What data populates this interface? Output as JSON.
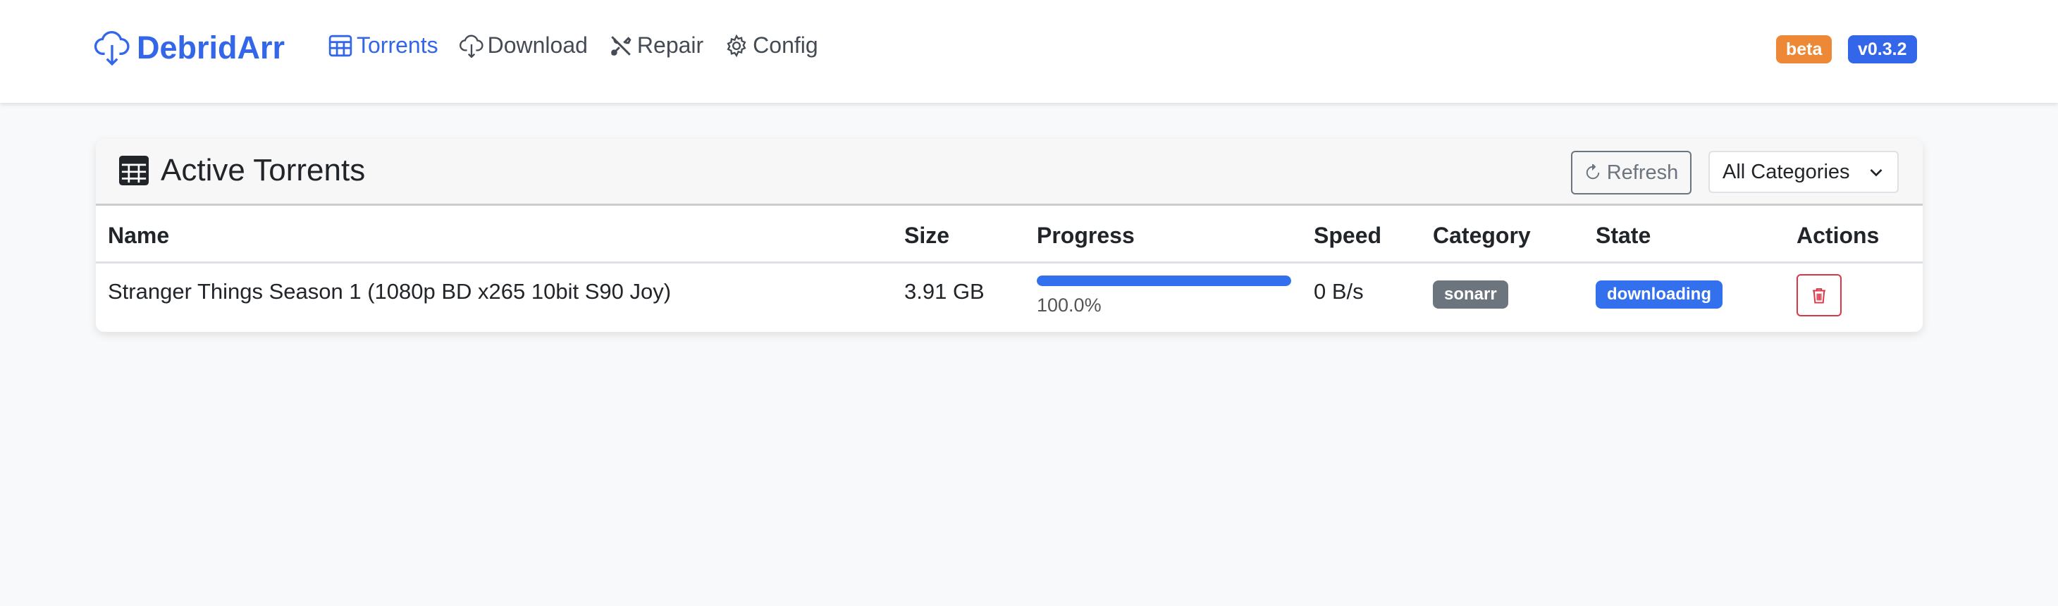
{
  "nav": {
    "brand": "DebridArr",
    "links": [
      {
        "label": "Torrents",
        "icon": "table-icon",
        "active": true
      },
      {
        "label": "Download",
        "icon": "cloud-download-icon"
      },
      {
        "label": "Repair",
        "icon": "tools-icon"
      },
      {
        "label": "Config",
        "icon": "gear-icon"
      }
    ],
    "badges": [
      {
        "label": "beta",
        "color": "#ed8936"
      },
      {
        "label": "v0.3.2",
        "color": "#3366e8"
      }
    ]
  },
  "card": {
    "title": "Active Torrents",
    "refresh_label": "Refresh",
    "category_select": "All Categories",
    "columns": [
      "Name",
      "Size",
      "Progress",
      "Speed",
      "Category",
      "State",
      "Actions"
    ],
    "rows": [
      {
        "name": "Stranger Things Season 1 (1080p BD x265 10bit S90 Joy)",
        "size": "3.91 GB",
        "progress": 100.0,
        "progress_label": "100.0%",
        "speed": "0 B/s",
        "category": "sonarr",
        "state": "downloading"
      }
    ]
  },
  "colors": {
    "accent": "#3366e8",
    "category_badge": "#6c757d",
    "state_badge": "#3370ee",
    "danger": "#dc3545"
  }
}
